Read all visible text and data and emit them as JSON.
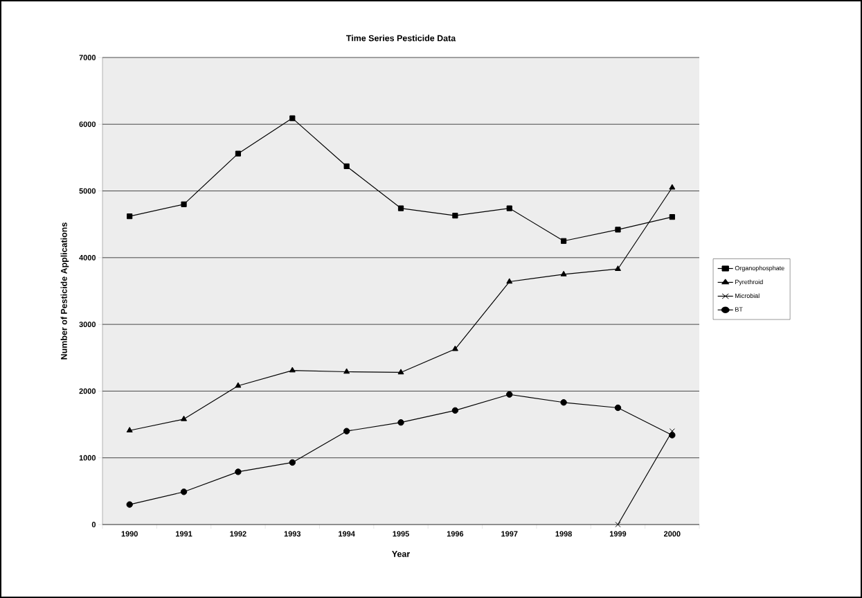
{
  "chart_data": {
    "type": "line",
    "title": "Time Series Pesticide Data",
    "xlabel": "Year",
    "ylabel": "Number of Pesticide Applications",
    "categories": [
      "1990",
      "1991",
      "1992",
      "1993",
      "1994",
      "1995",
      "1996",
      "1997",
      "1998",
      "1999",
      "2000"
    ],
    "series": [
      {
        "name": "Organophosphate",
        "color": "#000000",
        "marker": "square",
        "values": [
          4620,
          4800,
          5560,
          6090,
          5370,
          4740,
          4630,
          4740,
          4250,
          4420,
          4610
        ]
      },
      {
        "name": "Pyrethroid",
        "color": "#000000",
        "marker": "triangle",
        "values": [
          1410,
          1580,
          2080,
          2310,
          2290,
          2280,
          2630,
          3640,
          3750,
          3830,
          5050
        ]
      },
      {
        "name": "Microbial",
        "color": "#000000",
        "marker": "cross",
        "values": [
          null,
          null,
          null,
          null,
          null,
          null,
          null,
          null,
          null,
          0,
          1400
        ]
      },
      {
        "name": "BT",
        "color": "#000000",
        "marker": "circle",
        "values": [
          300,
          490,
          790,
          930,
          1400,
          1530,
          1710,
          1950,
          1830,
          1750,
          1340
        ]
      }
    ],
    "ylim": [
      0,
      7000
    ],
    "yticks": [
      0,
      1000,
      2000,
      3000,
      4000,
      5000,
      6000,
      7000
    ],
    "grid": "y",
    "legend": "right",
    "line_style": "solid"
  }
}
